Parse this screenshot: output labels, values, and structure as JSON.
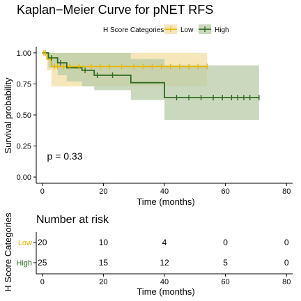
{
  "chart_data": {
    "type": "line",
    "title": "Kaplan−Meier Curve for pNET RFS",
    "legend": {
      "title": "H Score Categories",
      "placement": "top",
      "entries": [
        "Low",
        "High"
      ]
    },
    "xlabel": "Time (months)",
    "ylabel": "Survival probability",
    "xlim": [
      -2,
      82
    ],
    "ylim": [
      -0.05,
      1.05
    ],
    "xticks": [
      "0",
      "20",
      "40",
      "60",
      "80"
    ],
    "xtick_values": [
      0,
      20,
      40,
      60,
      80
    ],
    "yticks": [
      "0.00",
      "0.25",
      "0.50",
      "0.75",
      "1.00"
    ],
    "ytick_values": [
      0,
      0.25,
      0.5,
      0.75,
      1.0
    ],
    "annotation": "p = 0.33",
    "annotation_at": [
      2,
      0.17
    ],
    "colors": {
      "Low": "#E7B800",
      "High": "#2E6B1F",
      "Low_band": "#F2DFA3",
      "High_band": "#B8CCA8"
    },
    "series": [
      {
        "name": "Low",
        "steps": [
          [
            0,
            1.0
          ],
          [
            1.5,
            0.95
          ],
          [
            3,
            0.89
          ],
          [
            54,
            0.89
          ]
        ],
        "ci_steps": [
          [
            0,
            1.0,
            1.0
          ],
          [
            1.5,
            0.86,
            1.0
          ],
          [
            3,
            0.73,
            1.0
          ],
          [
            54,
            0.73,
            1.0
          ]
        ],
        "censor_x": [
          0.5,
          1,
          4,
          5,
          7,
          9,
          12,
          16,
          19,
          22,
          26,
          30,
          33,
          36,
          39,
          42,
          45,
          48,
          51,
          54
        ]
      },
      {
        "name": "High",
        "steps": [
          [
            0,
            1.0
          ],
          [
            2,
            0.96
          ],
          [
            5,
            0.92
          ],
          [
            8,
            0.88
          ],
          [
            13,
            0.86
          ],
          [
            17,
            0.82
          ],
          [
            29,
            0.76
          ],
          [
            40,
            0.64
          ],
          [
            71,
            0.64
          ]
        ],
        "ci_steps": [
          [
            0,
            1.0,
            1.0
          ],
          [
            2,
            0.88,
            1.0
          ],
          [
            5,
            0.82,
            1.0
          ],
          [
            8,
            0.77,
            1.0
          ],
          [
            13,
            0.73,
            1.0
          ],
          [
            17,
            0.7,
            1.0
          ],
          [
            29,
            0.62,
            0.95
          ],
          [
            40,
            0.46,
            0.9
          ],
          [
            71,
            0.46,
            0.9
          ]
        ],
        "censor_x": [
          3,
          6,
          14,
          18,
          23,
          44,
          48,
          52,
          56,
          59,
          62,
          64,
          66,
          68,
          71
        ]
      }
    ]
  },
  "risk_table": {
    "title": "Number at risk",
    "ylabel": "H Score Categories",
    "xlabel": "Time (months)",
    "times": [
      0,
      20,
      40,
      60,
      80
    ],
    "xticks": [
      "0",
      "20",
      "40",
      "60",
      "80"
    ],
    "rows": [
      {
        "label": "Low",
        "color": "#E7B800",
        "values": [
          "20",
          "10",
          "4",
          "0",
          "0"
        ]
      },
      {
        "label": "High",
        "color": "#2E6B1F",
        "values": [
          "25",
          "15",
          "12",
          "5",
          "0"
        ]
      }
    ]
  }
}
